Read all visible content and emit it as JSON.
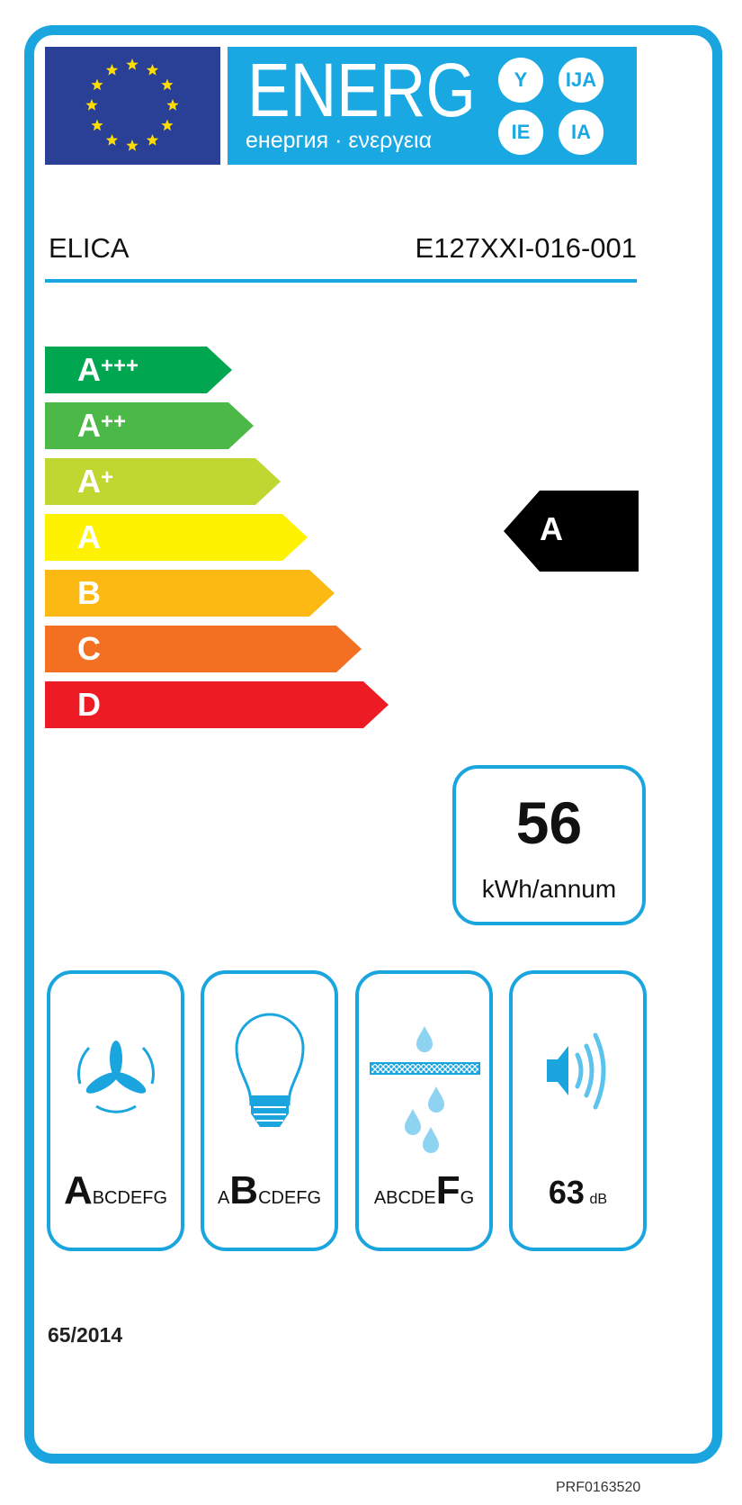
{
  "header": {
    "energy_word": "ENERG",
    "energy_subtitle": "енергия · ενεργεια",
    "language_suffixes": [
      "Y",
      "IJA",
      "IE",
      "IA"
    ]
  },
  "supplier": "ELICA",
  "model": "E127XXI-016-001",
  "scale": [
    {
      "class": "A",
      "plus": "+++",
      "color": "#00a650"
    },
    {
      "class": "A",
      "plus": "++",
      "color": "#4cb847"
    },
    {
      "class": "A",
      "plus": "+",
      "color": "#bfd730"
    },
    {
      "class": "A",
      "plus": "",
      "color": "#fff200"
    },
    {
      "class": "B",
      "plus": "",
      "color": "#fdb913"
    },
    {
      "class": "C",
      "plus": "",
      "color": "#f36f21"
    },
    {
      "class": "D",
      "plus": "",
      "color": "#ed1c24"
    }
  ],
  "energy_class": "A",
  "consumption": {
    "value": "56",
    "unit": "kWh/annum"
  },
  "pictograms": [
    {
      "icon": "fan-icon",
      "pre": "",
      "sel": "A",
      "post": "BCDEFG"
    },
    {
      "icon": "light-bulb-icon",
      "pre": "A",
      "sel": "B",
      "post": "CDEFG"
    },
    {
      "icon": "grease-filter-icon",
      "pre": "ABCDE",
      "sel": "F",
      "post": "G"
    },
    {
      "icon": "speaker-noise-icon",
      "value": "63",
      "unit": "dB"
    }
  ],
  "regulation": "65/2014",
  "reference": "PRF0163520",
  "colors": {
    "frame": "#1aa5de",
    "eu_blue": "#2a3f96",
    "stars": "#ffdd00"
  }
}
